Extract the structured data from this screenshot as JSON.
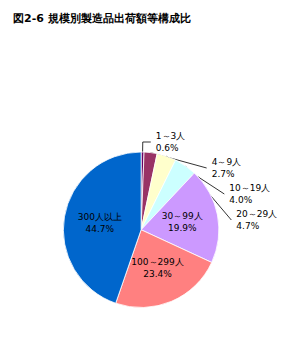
{
  "chart_data": {
    "type": "pie",
    "title": "図2-6 規模別製造品出荷額等構成比",
    "categories": [
      "1～3人",
      "4～9人",
      "10～19人",
      "20～29人",
      "30～99人",
      "100～299人",
      "300人以上"
    ],
    "values": [
      0.6,
      2.7,
      4.0,
      4.7,
      19.9,
      23.4,
      44.7
    ],
    "value_labels": [
      "0.6%",
      "2.7%",
      "4.0%",
      "4.7%",
      "19.9%",
      "23.4%",
      "44.7%"
    ],
    "colors": [
      "#660066",
      "#993366",
      "#FFFFCC",
      "#CCFFFF",
      "#CC99FF",
      "#FF8080",
      "#0066CC"
    ],
    "data_labels": true
  }
}
